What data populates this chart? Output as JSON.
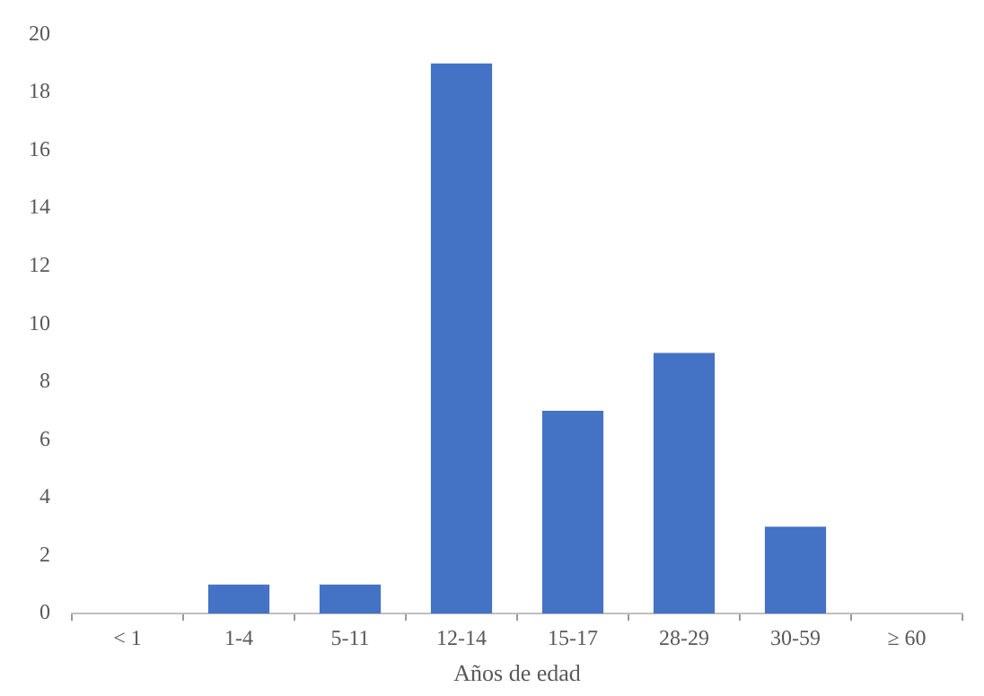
{
  "chart_data": {
    "type": "bar",
    "xlabel": "Años de edad",
    "categories": [
      "< 1",
      "1-4",
      "5-11",
      "12-14",
      "15-17",
      "28-29",
      "30-59",
      "≥ 60"
    ],
    "values": [
      0,
      1,
      1,
      19,
      7,
      9,
      3,
      0
    ],
    "color": "#4472c4",
    "ylim": [
      0,
      20
    ],
    "yticks": [
      0,
      2,
      4,
      6,
      8,
      10,
      12,
      14,
      16,
      18,
      20
    ],
    "grid": false,
    "legend": false
  }
}
